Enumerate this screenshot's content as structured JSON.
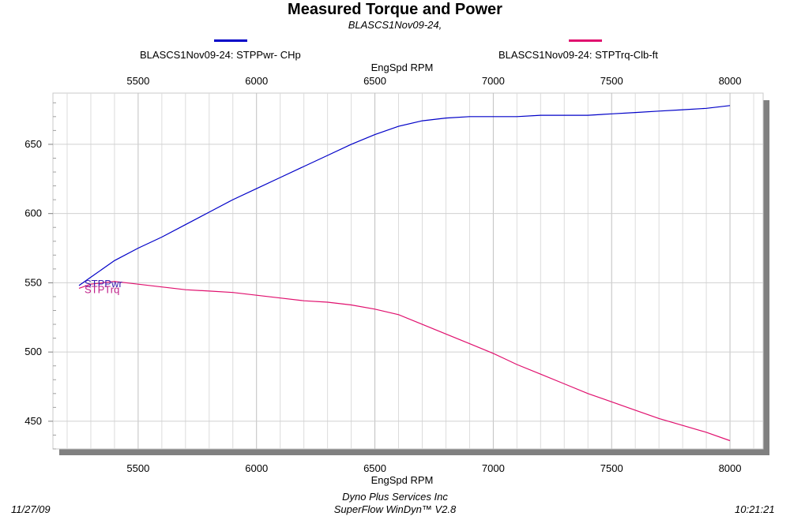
{
  "chart_data": {
    "type": "line",
    "title": "Measured Torque and Power",
    "subtitle": "BLASCS1Nov09-24,",
    "xlabel": "EngSpd  RPM",
    "x_tick_labels": [
      "5500",
      "6000",
      "6500",
      "7000",
      "7500",
      "8000"
    ],
    "x_ticks": [
      5500,
      6000,
      6500,
      7000,
      7500,
      8000
    ],
    "y_tick_labels": [
      "450",
      "500",
      "550",
      "600",
      "650"
    ],
    "y_ticks": [
      450,
      500,
      550,
      600,
      650
    ],
    "xlim": [
      5140,
      8140
    ],
    "ylim": [
      430,
      687
    ],
    "grid": true,
    "legend_position": "top",
    "series": [
      {
        "name": "BLASCS1Nov09-24: STPPwr- CHp",
        "end_label": "STPPwr",
        "color": "#0000c8",
        "x": [
          5250,
          5300,
          5400,
          5500,
          5600,
          5700,
          5800,
          5900,
          6000,
          6100,
          6200,
          6300,
          6400,
          6500,
          6600,
          6700,
          6800,
          6900,
          7000,
          7100,
          7200,
          7300,
          7400,
          7500,
          7600,
          7700,
          7800,
          7900,
          8000
        ],
        "y": [
          548,
          554,
          566,
          575,
          583,
          592,
          601,
          610,
          618,
          626,
          634,
          642,
          650,
          657,
          663,
          667,
          669,
          670,
          670,
          670,
          671,
          671,
          671,
          672,
          673,
          674,
          675,
          676,
          678
        ]
      },
      {
        "name": "BLASCS1Nov09-24: STPTrq-Clb-ft",
        "end_label": "STPTrq",
        "color": "#e0106e",
        "x": [
          5250,
          5300,
          5400,
          5500,
          5600,
          5700,
          5800,
          5900,
          6000,
          6100,
          6200,
          6300,
          6400,
          6500,
          6600,
          6700,
          6800,
          6900,
          7000,
          7100,
          7200,
          7300,
          7400,
          7500,
          7600,
          7700,
          7800,
          7900,
          8000
        ],
        "y": [
          546,
          549,
          551,
          549,
          547,
          545,
          544,
          543,
          541,
          539,
          537,
          536,
          534,
          531,
          527,
          520,
          513,
          506,
          499,
          491,
          484,
          477,
          470,
          464,
          458,
          452,
          447,
          442,
          436
        ]
      }
    ]
  },
  "footer": {
    "date": "11/27/09",
    "company": "Dyno Plus Services Inc",
    "software": "SuperFlow WinDyn™ V2.8",
    "time": "10:21:21"
  }
}
